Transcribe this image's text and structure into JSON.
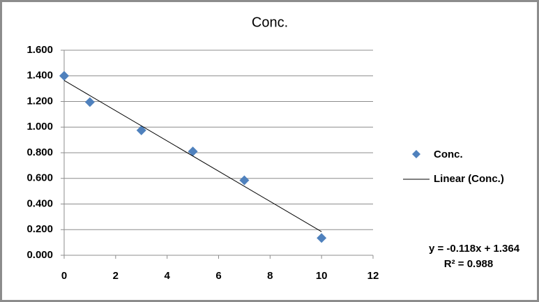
{
  "chart_data": {
    "type": "scatter",
    "title": "Conc.",
    "series": [
      {
        "name": "Conc.",
        "color": "#4f81bd",
        "x": [
          0,
          1,
          3,
          5,
          7,
          10
        ],
        "values": [
          1.4,
          1.195,
          0.975,
          0.81,
          0.585,
          0.135
        ]
      }
    ],
    "trendline": {
      "name": "Linear (Conc.)",
      "color": "#000000",
      "slope": -0.118,
      "intercept": 1.364,
      "equation": "y = -0.118x + 1.364",
      "r2_label": "R² = 0.988"
    },
    "xlim": [
      0,
      12
    ],
    "xticks": [
      0,
      2,
      4,
      6,
      8,
      10,
      12
    ],
    "ylim": [
      0,
      1.6
    ],
    "yticks": [
      {
        "value": 0,
        "label": "0.000"
      },
      {
        "value": 0.2,
        "label": "0.200"
      },
      {
        "value": 0.4,
        "label": "0.400"
      },
      {
        "value": 0.6,
        "label": "0.600"
      },
      {
        "value": 0.8,
        "label": "0.800"
      },
      {
        "value": 1.0,
        "label": "1.000"
      },
      {
        "value": 1.2,
        "label": "1.200"
      },
      {
        "value": 1.4,
        "label": "1.400"
      },
      {
        "value": 1.6,
        "label": "1.600"
      }
    ],
    "grid": true,
    "legend": "right"
  }
}
